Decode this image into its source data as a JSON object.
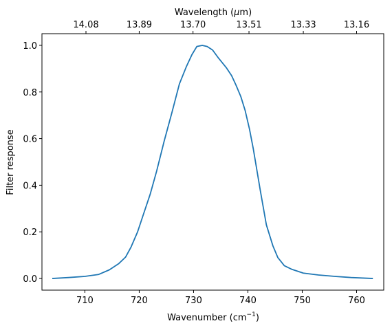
{
  "chart_data": {
    "type": "line",
    "xlabel": "Wavenumber (cm",
    "xlabel_sup": "−1",
    "xlabel_suffix": ")",
    "ylabel": "Filter response",
    "top_xlabel": "Wavelength (",
    "top_xlabel_mu": "μ",
    "top_xlabel_suffix": "m)",
    "xlim": [
      702.1,
      765.0
    ],
    "ylim": [
      -0.05,
      1.05
    ],
    "grid": false,
    "legend": "none",
    "line_color": "#1f77b4",
    "x_ticks": [
      {
        "value": 710,
        "label": "710"
      },
      {
        "value": 720,
        "label": "720"
      },
      {
        "value": 730,
        "label": "730"
      },
      {
        "value": 740,
        "label": "740"
      },
      {
        "value": 750,
        "label": "750"
      },
      {
        "value": 760,
        "label": "760"
      }
    ],
    "y_ticks": [
      {
        "value": 0.0,
        "label": "0.0"
      },
      {
        "value": 0.2,
        "label": "0.2"
      },
      {
        "value": 0.4,
        "label": "0.4"
      },
      {
        "value": 0.6,
        "label": "0.6"
      },
      {
        "value": 0.8,
        "label": "0.8"
      },
      {
        "value": 1.0,
        "label": "1.0"
      }
    ],
    "top_ticks": [
      {
        "value": 710.2,
        "label": "14.08"
      },
      {
        "value": 720.0,
        "label": "13.89"
      },
      {
        "value": 729.9,
        "label": "13.70"
      },
      {
        "value": 740.2,
        "label": "13.51"
      },
      {
        "value": 750.2,
        "label": "13.33"
      },
      {
        "value": 760.0,
        "label": "13.16"
      }
    ],
    "series": [
      {
        "x": [
          704.0,
          707.0,
          710.0,
          712.5,
          714.5,
          716.2,
          717.5,
          718.5,
          719.7,
          720.7,
          722.0,
          723.2,
          724.6,
          726.0,
          727.4,
          728.7,
          729.7,
          730.6,
          731.6,
          732.5,
          733.5,
          734.6,
          736.0,
          737.0,
          737.8,
          738.7,
          739.5,
          740.3,
          741.0,
          742.3,
          743.4,
          744.6,
          745.5,
          746.7,
          748.0,
          750.2,
          753.0,
          756.0,
          759.0,
          763.0
        ],
        "y": [
          0.0,
          0.004,
          0.009,
          0.017,
          0.037,
          0.063,
          0.092,
          0.135,
          0.2,
          0.27,
          0.36,
          0.46,
          0.59,
          0.71,
          0.835,
          0.91,
          0.96,
          0.995,
          1.0,
          0.995,
          0.98,
          0.945,
          0.905,
          0.87,
          0.83,
          0.78,
          0.72,
          0.64,
          0.555,
          0.375,
          0.23,
          0.14,
          0.09,
          0.055,
          0.04,
          0.023,
          0.015,
          0.009,
          0.004,
          0.0
        ]
      }
    ]
  }
}
